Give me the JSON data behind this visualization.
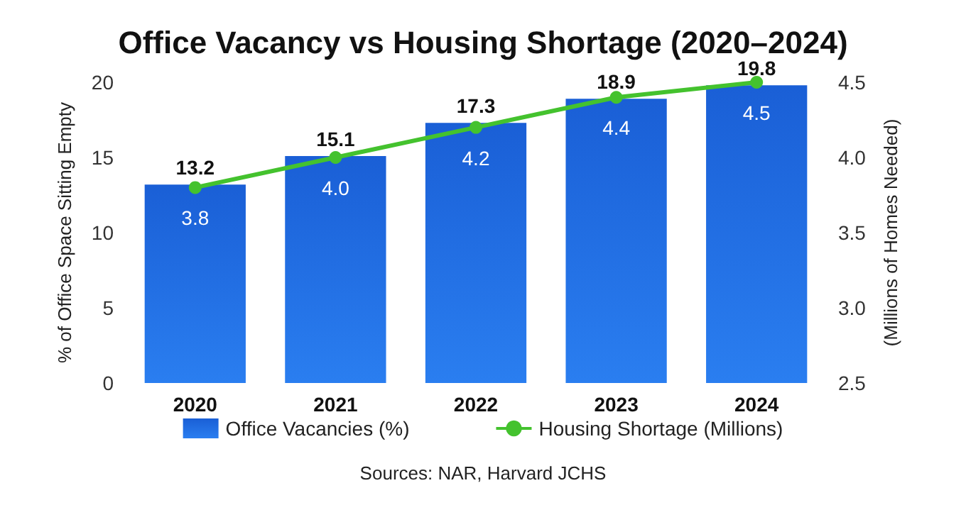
{
  "chart_data": {
    "type": "bar",
    "title": "Office Vacancy vs Housing Shortage (2020–2024)",
    "categories": [
      "2020",
      "2021",
      "2022",
      "2023",
      "2024"
    ],
    "series": [
      {
        "name": "Office Vacancies (%)",
        "color": "#1a5fd6",
        "values": [
          13.2,
          15.1,
          17.3,
          18.9,
          19.8
        ],
        "value_labels": [
          "13.2",
          "15.1",
          "17.3",
          "18.9",
          "19.8"
        ]
      },
      {
        "name": "Housing Shortage (Millions)",
        "type": "line",
        "axis": "y2",
        "color": "#44c22e",
        "marker": "circle",
        "values": [
          3.8,
          4.0,
          4.2,
          4.4,
          4.5
        ],
        "value_labels": [
          "3.8",
          "4.0",
          "4.2",
          "4.4",
          "4.5"
        ]
      }
    ],
    "ylabel": "% of Office Space Sitting Empty",
    "y2label": "(Millions of Homes Needed)",
    "ylim": [
      0,
      20
    ],
    "yticks": [
      0,
      5,
      10,
      15,
      20
    ],
    "y2lim": [
      2.5,
      4.5
    ],
    "y2ticks": [
      2.5,
      {
        "value": 3,
        "label": "3.0"
      },
      3.5,
      {
        "value": 4,
        "label": "4.0"
      },
      4.5
    ],
    "legend": "bottom",
    "grid": false,
    "annotations": [
      "Sources: NAR, Harvard JCHS"
    ]
  }
}
